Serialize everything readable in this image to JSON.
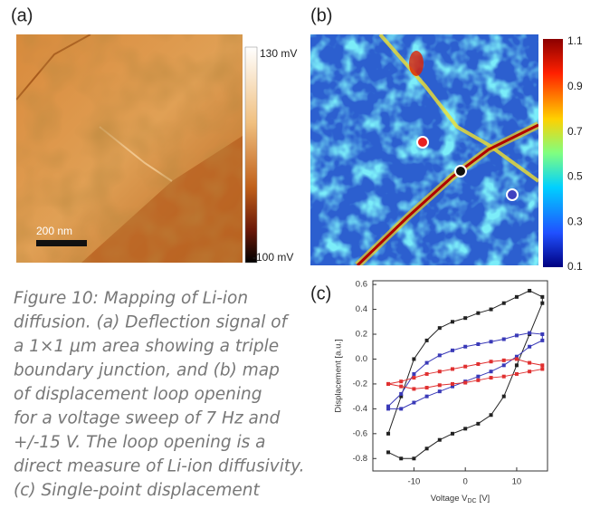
{
  "panels": {
    "a": "(a)",
    "b": "(b)",
    "c": "(c)"
  },
  "scale_bar": "200 nm",
  "colorbar_a": {
    "top": "130 mV",
    "bottom": "-100 mV"
  },
  "colorbar_b": [
    "1.1",
    "0.9",
    "0.7",
    "0.5",
    "0.3",
    "0.1"
  ],
  "caption": [
    "Figure 10: Mapping of Li-ion",
    "diffusion. (a) Deflection signal of",
    "a 1×1 μm area showing a triple",
    "boundary junction, and (b) map",
    "of displacement loop opening",
    "for a voltage sweep of 7 Hz and",
    "+/-15 V. The loop opening is a",
    "direct measure of Li-ion diffusivity.",
    "(c) Single-point displacement"
  ],
  "chart_data": {
    "type": "line",
    "ylabel": "Displacement [a.u.]",
    "xlabel": {
      "text": "Voltage V",
      "sub": "DC",
      "unit": "[V]"
    },
    "x": [
      -15,
      -12.5,
      -10,
      -7.5,
      -5,
      -2.5,
      0,
      2.5,
      5,
      7.5,
      10,
      12.5,
      15,
      15,
      12.5,
      10,
      7.5,
      5,
      2.5,
      0,
      -2.5,
      -5,
      -7.5,
      -10,
      -12.5,
      -15
    ],
    "series": [
      {
        "color": "#222222",
        "values": [
          -0.6,
          -0.3,
          0.0,
          0.15,
          0.25,
          0.3,
          0.33,
          0.37,
          0.4,
          0.45,
          0.5,
          0.55,
          0.5,
          0.45,
          0.2,
          -0.05,
          -0.3,
          -0.45,
          -0.52,
          -0.56,
          -0.6,
          -0.65,
          -0.72,
          -0.8,
          -0.8,
          -0.75
        ]
      },
      {
        "color": "#3a3ab8",
        "values": [
          -0.38,
          -0.28,
          -0.12,
          -0.03,
          0.03,
          0.07,
          0.1,
          0.12,
          0.14,
          0.16,
          0.19,
          0.21,
          0.2,
          0.15,
          0.1,
          0.02,
          -0.05,
          -0.1,
          -0.14,
          -0.18,
          -0.22,
          -0.26,
          -0.3,
          -0.35,
          -0.4,
          -0.4
        ]
      },
      {
        "color": "#e03030",
        "values": [
          -0.2,
          -0.18,
          -0.15,
          -0.12,
          -0.1,
          -0.08,
          -0.06,
          -0.04,
          -0.02,
          -0.01,
          0.0,
          -0.03,
          -0.05,
          -0.08,
          -0.1,
          -0.12,
          -0.14,
          -0.15,
          -0.17,
          -0.19,
          -0.2,
          -0.21,
          -0.23,
          -0.24,
          -0.22,
          -0.2
        ]
      }
    ],
    "xlim": [
      -18,
      16
    ],
    "xticks": [
      -10,
      0,
      10
    ],
    "ylim": [
      -0.9,
      0.63
    ],
    "yticks": [
      0.6,
      0.4,
      0.2,
      {
        "value": 0,
        "label": "0.0"
      },
      -0.2,
      -0.4,
      -0.6,
      -0.8
    ]
  }
}
